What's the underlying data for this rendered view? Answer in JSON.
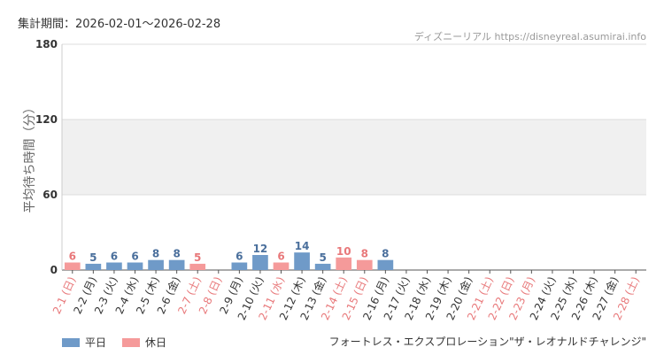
{
  "period_text": "集計期間：2026-02-01〜2026-02-28",
  "source_text": "ディズニーリアル https://disneyreal.asumirai.info",
  "attraction_name": "フォートレス・エクスプロレーション\"ザ・レオナルドチャレンジ\"",
  "colors": {
    "weekday": "#6f9ac8",
    "holiday": "#f59a9a",
    "weekday_label": "#4a6f9c",
    "holiday_label": "#e8787a"
  },
  "chart_data": {
    "type": "bar",
    "ylabel": "平均待ち時間（分）",
    "ylim": [
      0,
      180
    ],
    "yticks": [
      0,
      60,
      120,
      180
    ],
    "shaded_band": [
      60,
      120
    ],
    "grid": true,
    "legend": [
      {
        "name": "平日",
        "color": "#6f9ac8"
      },
      {
        "name": "休日",
        "color": "#f59a9a"
      }
    ],
    "legend_position": "bottom-left",
    "categories": [
      "2-1 (日)",
      "2-2 (月)",
      "2-3 (火)",
      "2-4 (水)",
      "2-5 (木)",
      "2-6 (金)",
      "2-7 (土)",
      "2-8 (日)",
      "2-9 (月)",
      "2-10 (火)",
      "2-11 (水)",
      "2-12 (木)",
      "2-13 (金)",
      "2-14 (土)",
      "2-15 (日)",
      "2-16 (月)",
      "2-17 (火)",
      "2-18 (水)",
      "2-19 (木)",
      "2-20 (金)",
      "2-21 (土)",
      "2-22 (日)",
      "2-23 (月)",
      "2-24 (火)",
      "2-25 (水)",
      "2-26 (木)",
      "2-27 (金)",
      "2-28 (土)"
    ],
    "day_type": [
      "休日",
      "平日",
      "平日",
      "平日",
      "平日",
      "平日",
      "休日",
      "休日",
      "平日",
      "平日",
      "休日",
      "平日",
      "平日",
      "休日",
      "休日",
      "平日",
      "平日",
      "平日",
      "平日",
      "平日",
      "休日",
      "休日",
      "休日",
      "平日",
      "平日",
      "平日",
      "平日",
      "休日"
    ],
    "values": [
      6,
      5,
      6,
      6,
      8,
      8,
      5,
      null,
      6,
      12,
      6,
      14,
      5,
      10,
      8,
      8,
      null,
      null,
      null,
      null,
      null,
      null,
      null,
      null,
      null,
      null,
      null,
      null
    ]
  }
}
